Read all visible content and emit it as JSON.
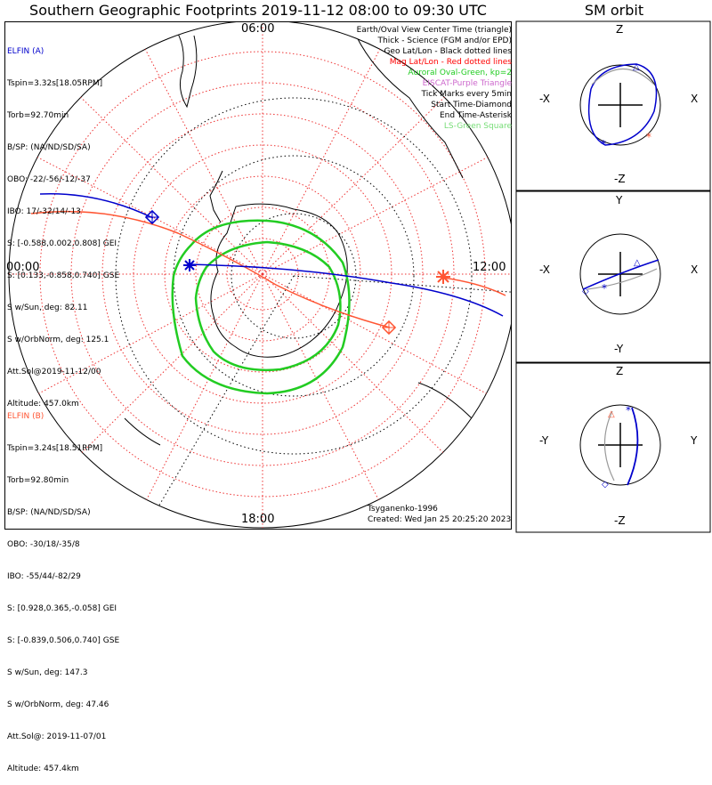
{
  "title": "Southern Geographic Footprints 2019-11-12 08:00 to 09:30 UTC",
  "sm_title": "SM orbit",
  "time_labels": {
    "top": "06:00",
    "left": "00:00",
    "right": "12:00",
    "bottom": "18:00"
  },
  "legend": [
    {
      "text": "Earth/Oval View Center Time (triangle)",
      "color": "#000000"
    },
    {
      "text": "Thick - Science (FGM and/or EPD)",
      "color": "#000000"
    },
    {
      "text": "Geo Lat/Lon - Black dotted lines",
      "color": "#000000"
    },
    {
      "text": "Mag Lat/Lon - Red dotted lines",
      "color": "#ff0000"
    },
    {
      "text": "Auroral Oval-Green, kp=2",
      "color": "#22cc22"
    },
    {
      "text": "EISCAT-Purple Triangle",
      "color": "#cc66cc"
    },
    {
      "text": "Tick Marks every 5min",
      "color": "#000000"
    },
    {
      "text": "Start Time-Diamond",
      "color": "#000000"
    },
    {
      "text": "End Time-Asterisk",
      "color": "#000000"
    },
    {
      "text": "LS-Green Square",
      "color": "#77dd77"
    }
  ],
  "elfin_a": {
    "name": "ELFIN (A)",
    "color": "#0000cc",
    "lines": [
      "Tspin=3.32s[18.05RPM]",
      "Torb=92.70min",
      "B/SP: (NA/ND/SD/SA)",
      "OBO: -22/-56/-12/-37",
      "IBO: 17/-32/14/-13",
      "S: [-0.588,0.002,0.808] GEI",
      "S: [0.133,-0.858,0.740] GSE",
      "S w/Sun, deg: 82.11",
      "S w/OrbNorm, deg: 125.1",
      "Att.Sol@2019-11-12/00",
      "Altitude: 457.0km"
    ]
  },
  "elfin_b": {
    "name": "ELFIN (B)",
    "color": "#ff5533",
    "lines": [
      "Tspin=3.24s[18.51RPM]",
      "Torb=92.80min",
      "B/SP: (NA/ND/SD/SA)",
      "OBO: -30/18/-35/8",
      "IBO: -55/44/-82/29",
      "S: [0.928,0.365,-0.058] GEI",
      "S: [-0.839,0.506,0.740] GSE",
      "S w/Sun, deg: 147.3",
      "S w/OrbNorm, deg: 47.46",
      "Att.Sol@: 2019-11-07/01",
      "Altitude: 457.4km"
    ]
  },
  "model": "Tsyganenko-1996",
  "created": "Created: Wed Jan 25 20:25:20 2023",
  "sm_panels": [
    {
      "top": "Z",
      "bottom": "-Z",
      "left": "-X",
      "right": "X"
    },
    {
      "top": "Y",
      "bottom": "-Y",
      "left": "-X",
      "right": "X"
    },
    {
      "top": "Z",
      "bottom": "-Z",
      "left": "-Y",
      "right": "Y"
    }
  ],
  "colors": {
    "elfin_a": "#0000cc",
    "elfin_b": "#ff5533",
    "oval": "#22cc22",
    "geo_grid": "#000000",
    "mag_grid": "#ff0000"
  }
}
